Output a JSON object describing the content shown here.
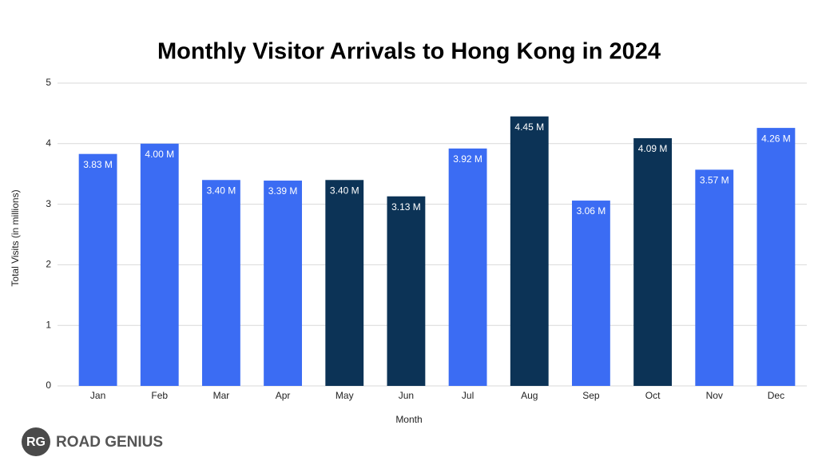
{
  "chart_data": {
    "type": "bar",
    "title": "Monthly Visitor Arrivals to Hong Kong in 2024",
    "x_label": "Month",
    "y_label": "Total Visits (in millions)",
    "categories": [
      "Jan",
      "Feb",
      "Mar",
      "Apr",
      "May",
      "Jun",
      "Jul",
      "Aug",
      "Sep",
      "Oct",
      "Nov",
      "Dec"
    ],
    "values": [
      3.83,
      4.0,
      3.4,
      3.39,
      3.4,
      3.13,
      3.92,
      4.45,
      3.06,
      4.09,
      3.57,
      4.26
    ],
    "value_labels": [
      "3.83 M",
      "4.00 M",
      "3.40 M",
      "3.39 M",
      "3.40 M",
      "3.13 M",
      "3.92 M",
      "4.45 M",
      "3.06 M",
      "4.09 M",
      "3.57 M",
      "4.26 M"
    ],
    "colors": [
      "#3b6cf3",
      "#3b6cf3",
      "#3b6cf3",
      "#3b6cf3",
      "#0c3356",
      "#0c3356",
      "#3b6cf3",
      "#0c3356",
      "#3b6cf3",
      "#0c3356",
      "#3b6cf3",
      "#3b6cf3"
    ],
    "ylim": [
      0,
      5
    ],
    "yticks": [
      0,
      1,
      2,
      3,
      4,
      5
    ],
    "grid": true
  },
  "logo": {
    "mark": "RG",
    "text": "ROAD GENIUS"
  }
}
